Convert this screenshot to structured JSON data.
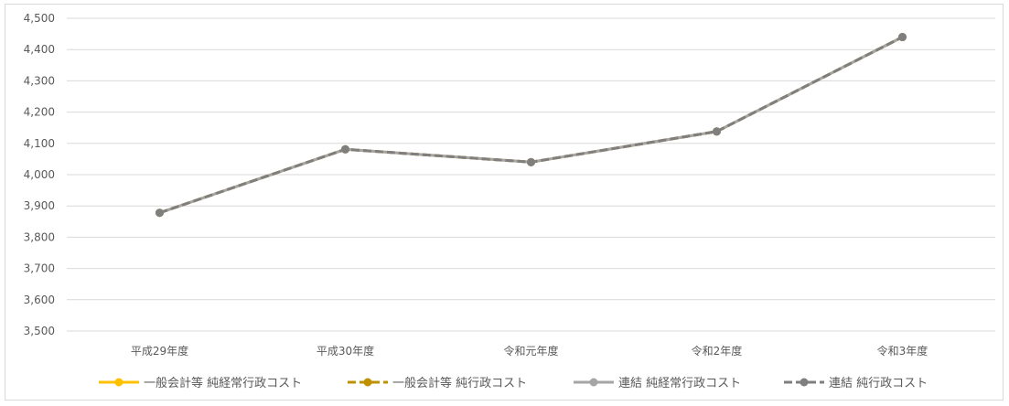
{
  "chart_data": {
    "type": "line",
    "categories": [
      "平成29年度",
      "平成30年度",
      "令和元年度",
      "令和2年度",
      "令和3年度"
    ],
    "ylim": [
      3500,
      4500
    ],
    "yticks": [
      3500,
      3600,
      3700,
      3800,
      3900,
      4000,
      4100,
      4200,
      4300,
      4400,
      4500
    ],
    "ytick_labels": [
      "3,500",
      "3,600",
      "3,700",
      "3,800",
      "3,900",
      "4,000",
      "4,100",
      "4,200",
      "4,300",
      "4,400",
      "4,500"
    ],
    "grid": true,
    "legend": "bottom",
    "series": [
      {
        "name": "一般会計等 純経常行政コスト",
        "color": "#FFC000",
        "dash": false,
        "values": [
          3878,
          4081,
          4040,
          4138,
          4440
        ]
      },
      {
        "name": "一般会計等 純行政コスト",
        "color": "#BF9000",
        "dash": true,
        "values": [
          3878,
          4081,
          4040,
          4138,
          4440
        ]
      },
      {
        "name": "連結 純経常行政コスト",
        "color": "#A5A5A5",
        "dash": false,
        "values": [
          3878,
          4081,
          4040,
          4138,
          4440
        ]
      },
      {
        "name": "連結 純行政コスト",
        "color": "#7F7F7F",
        "dash": true,
        "values": [
          3878,
          4081,
          4040,
          4138,
          4440
        ]
      }
    ]
  }
}
